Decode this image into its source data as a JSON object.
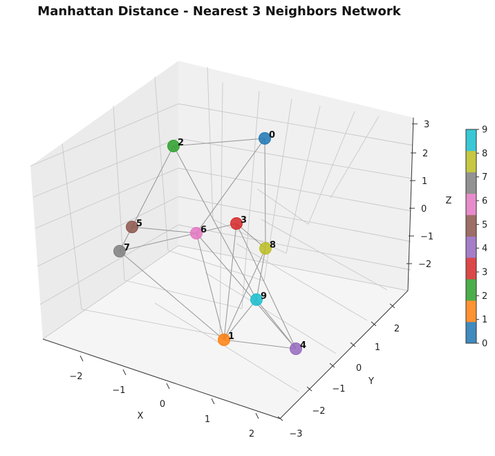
{
  "chart_data": {
    "type": "scatter",
    "title": "Manhattan Distance - Nearest 3 Neighbors Network",
    "xlabel": "X",
    "ylabel": "Y",
    "zlabel": "Z",
    "x_ticks": [
      "−2",
      "−1",
      "0",
      "1",
      "2"
    ],
    "y_ticks": [
      "−3",
      "−2",
      "−1",
      "0",
      "1",
      "2"
    ],
    "z_ticks": [
      "−2",
      "−1",
      "0",
      "1",
      "2",
      "3"
    ],
    "colorbar": {
      "ticks": [
        "0",
        "1",
        "2",
        "3",
        "4",
        "5",
        "6",
        "7",
        "8",
        "9"
      ],
      "colors": [
        "#1f77b4",
        "#ff7f0e",
        "#2ca02c",
        "#d62728",
        "#9467bd",
        "#8c564b",
        "#e377c2",
        "#7f7f7f",
        "#bcbd22",
        "#17becf"
      ]
    },
    "nodes": [
      {
        "label": "0",
        "color": "#1f77b4"
      },
      {
        "label": "1",
        "color": "#ff7f0e"
      },
      {
        "label": "2",
        "color": "#2ca02c"
      },
      {
        "label": "3",
        "color": "#d62728"
      },
      {
        "label": "4",
        "color": "#9467bd"
      },
      {
        "label": "5",
        "color": "#8c564b"
      },
      {
        "label": "6",
        "color": "#e377c2"
      },
      {
        "label": "7",
        "color": "#7f7f7f"
      },
      {
        "label": "8",
        "color": "#bcbd22"
      },
      {
        "label": "9",
        "color": "#17becf"
      }
    ],
    "edges": [
      [
        0,
        2
      ],
      [
        0,
        8
      ],
      [
        0,
        6
      ],
      [
        2,
        5
      ],
      [
        2,
        9
      ],
      [
        5,
        7
      ],
      [
        5,
        6
      ],
      [
        6,
        7
      ],
      [
        3,
        6
      ],
      [
        3,
        1
      ],
      [
        3,
        8
      ],
      [
        6,
        1
      ],
      [
        6,
        4
      ],
      [
        7,
        1
      ],
      [
        8,
        9
      ],
      [
        8,
        1
      ],
      [
        9,
        1
      ],
      [
        9,
        4
      ],
      [
        1,
        4
      ],
      [
        3,
        4
      ]
    ]
  }
}
